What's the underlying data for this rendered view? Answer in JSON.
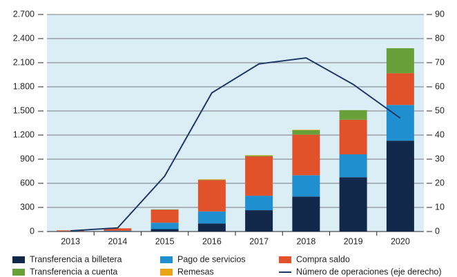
{
  "chart_data": {
    "type": "stacked_bar_line",
    "categories": [
      "2013",
      "2014",
      "2015",
      "2016",
      "2017",
      "2018",
      "2019",
      "2020"
    ],
    "series": [
      {
        "name": "Transferencia a billetera",
        "color": "#12284a",
        "values": [
          2,
          5,
          30,
          100,
          265,
          435,
          675,
          1130
        ]
      },
      {
        "name": "Pago de servicios",
        "color": "#1f8fd0",
        "values": [
          2,
          5,
          80,
          150,
          180,
          265,
          285,
          445
        ]
      },
      {
        "name": "Compra saldo",
        "color": "#e2522a",
        "values": [
          10,
          30,
          160,
          390,
          490,
          505,
          430,
          395
        ]
      },
      {
        "name": "Transferencia a cuenta",
        "color": "#6aa03a",
        "values": [
          0,
          0,
          5,
          5,
          10,
          55,
          120,
          310
        ]
      },
      {
        "name": "Remesas",
        "color": "#e8a317",
        "values": [
          0,
          0,
          0,
          5,
          5,
          5,
          0,
          0
        ]
      },
      {
        "name": "Número de operaciones (eje derecho)",
        "color": "#1f3864",
        "axis": "y2",
        "kind": "line",
        "values": [
          0.3,
          1.5,
          23,
          57.5,
          69.5,
          72,
          61,
          47
        ]
      }
    ],
    "ylim": [
      0,
      2700
    ],
    "yticks": [
      0,
      300,
      600,
      900,
      {
        "value": 1200,
        "label": "1.200"
      },
      {
        "value": 1500,
        "label": "1.500"
      },
      {
        "value": 1800,
        "label": "1.800"
      },
      {
        "value": 2100,
        "label": "2.100"
      },
      {
        "value": 2400,
        "label": "2.400"
      },
      {
        "value": 2700,
        "label": "2.700"
      }
    ],
    "y2lim": [
      0,
      90
    ],
    "y2ticks": [
      0,
      10,
      20,
      30,
      40,
      50,
      60,
      70,
      80,
      90
    ],
    "grid": true,
    "legend": "bottom"
  }
}
